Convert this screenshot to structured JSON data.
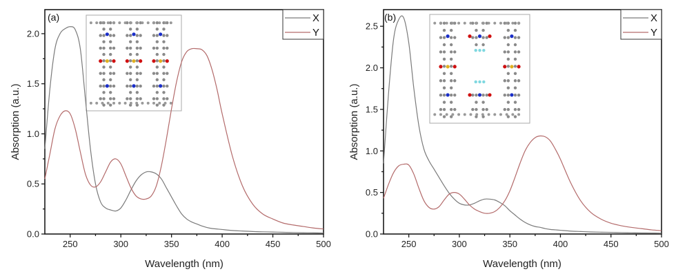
{
  "chart_data": [
    {
      "type": "line",
      "panel_label": "(a)",
      "title": "",
      "xlabel": "Wavelength (nm)",
      "ylabel": "Absorption (a.u.)",
      "xlim": [
        225,
        500
      ],
      "ylim": [
        0,
        2.24
      ],
      "xticks": [
        250,
        300,
        350,
        400,
        450,
        500
      ],
      "xtick_labels": [
        "250",
        "300",
        "350",
        "400",
        "450",
        "500"
      ],
      "yticks": [
        0.0,
        0.5,
        1.0,
        1.5,
        2.0
      ],
      "ytick_labels": [
        "0.0",
        "0.5",
        "1.0",
        "1.5",
        "2.0"
      ],
      "grid": false,
      "legend": "top-right",
      "inset": "molecular structure (three columns with blue N, red O, yellow S atoms)",
      "x": [
        225,
        230,
        235,
        240,
        245,
        250,
        255,
        260,
        265,
        270,
        275,
        280,
        285,
        290,
        295,
        300,
        305,
        310,
        315,
        320,
        325,
        330,
        335,
        340,
        345,
        350,
        355,
        360,
        365,
        370,
        375,
        380,
        385,
        390,
        395,
        400,
        410,
        420,
        430,
        440,
        450,
        460,
        470,
        480,
        490,
        500
      ],
      "series": [
        {
          "name": "X",
          "color": "#7a7a7a",
          "values": [
            0.85,
            1.45,
            1.85,
            2.0,
            2.05,
            2.07,
            2.04,
            1.85,
            1.35,
            0.85,
            0.5,
            0.32,
            0.26,
            0.24,
            0.23,
            0.26,
            0.34,
            0.44,
            0.53,
            0.59,
            0.62,
            0.62,
            0.6,
            0.55,
            0.46,
            0.37,
            0.28,
            0.2,
            0.15,
            0.12,
            0.1,
            0.08,
            0.065,
            0.055,
            0.05,
            0.045,
            0.035,
            0.03,
            0.025,
            0.022,
            0.02,
            0.017,
            0.015,
            0.013,
            0.012,
            0.01
          ]
        },
        {
          "name": "Y",
          "color": "#b36a6a",
          "values": [
            0.55,
            0.8,
            1.05,
            1.18,
            1.23,
            1.2,
            1.05,
            0.82,
            0.6,
            0.49,
            0.47,
            0.52,
            0.62,
            0.72,
            0.75,
            0.7,
            0.58,
            0.46,
            0.38,
            0.35,
            0.35,
            0.38,
            0.48,
            0.68,
            0.95,
            1.25,
            1.52,
            1.72,
            1.82,
            1.85,
            1.85,
            1.84,
            1.78,
            1.64,
            1.44,
            1.2,
            0.78,
            0.48,
            0.3,
            0.2,
            0.15,
            0.11,
            0.09,
            0.075,
            0.06,
            0.05
          ]
        }
      ]
    },
    {
      "type": "line",
      "panel_label": "(b)",
      "title": "",
      "xlabel": "Wavelength (nm)",
      "ylabel": "Absorption (a.u.)",
      "xlim": [
        225,
        500
      ],
      "ylim": [
        0,
        2.7
      ],
      "xticks": [
        250,
        300,
        350,
        400,
        450,
        500
      ],
      "xtick_labels": [
        "250",
        "300",
        "350",
        "400",
        "450",
        "500"
      ],
      "yticks": [
        0.0,
        0.5,
        1.0,
        1.5,
        2.0,
        2.5
      ],
      "ytick_labels": [
        "0.0",
        "0.5",
        "1.0",
        "1.5",
        "2.0",
        "2.5"
      ],
      "grid": false,
      "legend": "top-right",
      "inset": "molecular structure (with blue N, red O, yellow S and cyan F atoms)",
      "x": [
        225,
        230,
        235,
        240,
        245,
        250,
        255,
        260,
        265,
        270,
        275,
        280,
        285,
        290,
        295,
        300,
        305,
        310,
        315,
        320,
        325,
        330,
        335,
        340,
        345,
        350,
        355,
        360,
        365,
        370,
        375,
        380,
        385,
        390,
        395,
        400,
        410,
        420,
        430,
        440,
        450,
        460,
        470,
        480,
        490,
        500
      ],
      "series": [
        {
          "name": "X",
          "color": "#7a7a7a",
          "values": [
            0.85,
            1.7,
            2.35,
            2.58,
            2.6,
            2.3,
            1.75,
            1.3,
            1.02,
            0.88,
            0.78,
            0.68,
            0.58,
            0.49,
            0.42,
            0.37,
            0.35,
            0.35,
            0.37,
            0.4,
            0.42,
            0.42,
            0.41,
            0.38,
            0.34,
            0.28,
            0.23,
            0.18,
            0.14,
            0.11,
            0.09,
            0.08,
            0.065,
            0.055,
            0.05,
            0.045,
            0.035,
            0.03,
            0.025,
            0.022,
            0.02,
            0.017,
            0.015,
            0.013,
            0.012,
            0.01
          ]
        },
        {
          "name": "Y",
          "color": "#b36a6a",
          "values": [
            0.43,
            0.6,
            0.74,
            0.82,
            0.84,
            0.83,
            0.72,
            0.55,
            0.4,
            0.32,
            0.3,
            0.33,
            0.41,
            0.48,
            0.5,
            0.48,
            0.42,
            0.35,
            0.3,
            0.27,
            0.25,
            0.25,
            0.27,
            0.32,
            0.4,
            0.52,
            0.68,
            0.85,
            1.0,
            1.1,
            1.16,
            1.18,
            1.17,
            1.12,
            1.02,
            0.9,
            0.62,
            0.4,
            0.26,
            0.18,
            0.13,
            0.1,
            0.08,
            0.065,
            0.05,
            0.04
          ]
        }
      ]
    }
  ]
}
